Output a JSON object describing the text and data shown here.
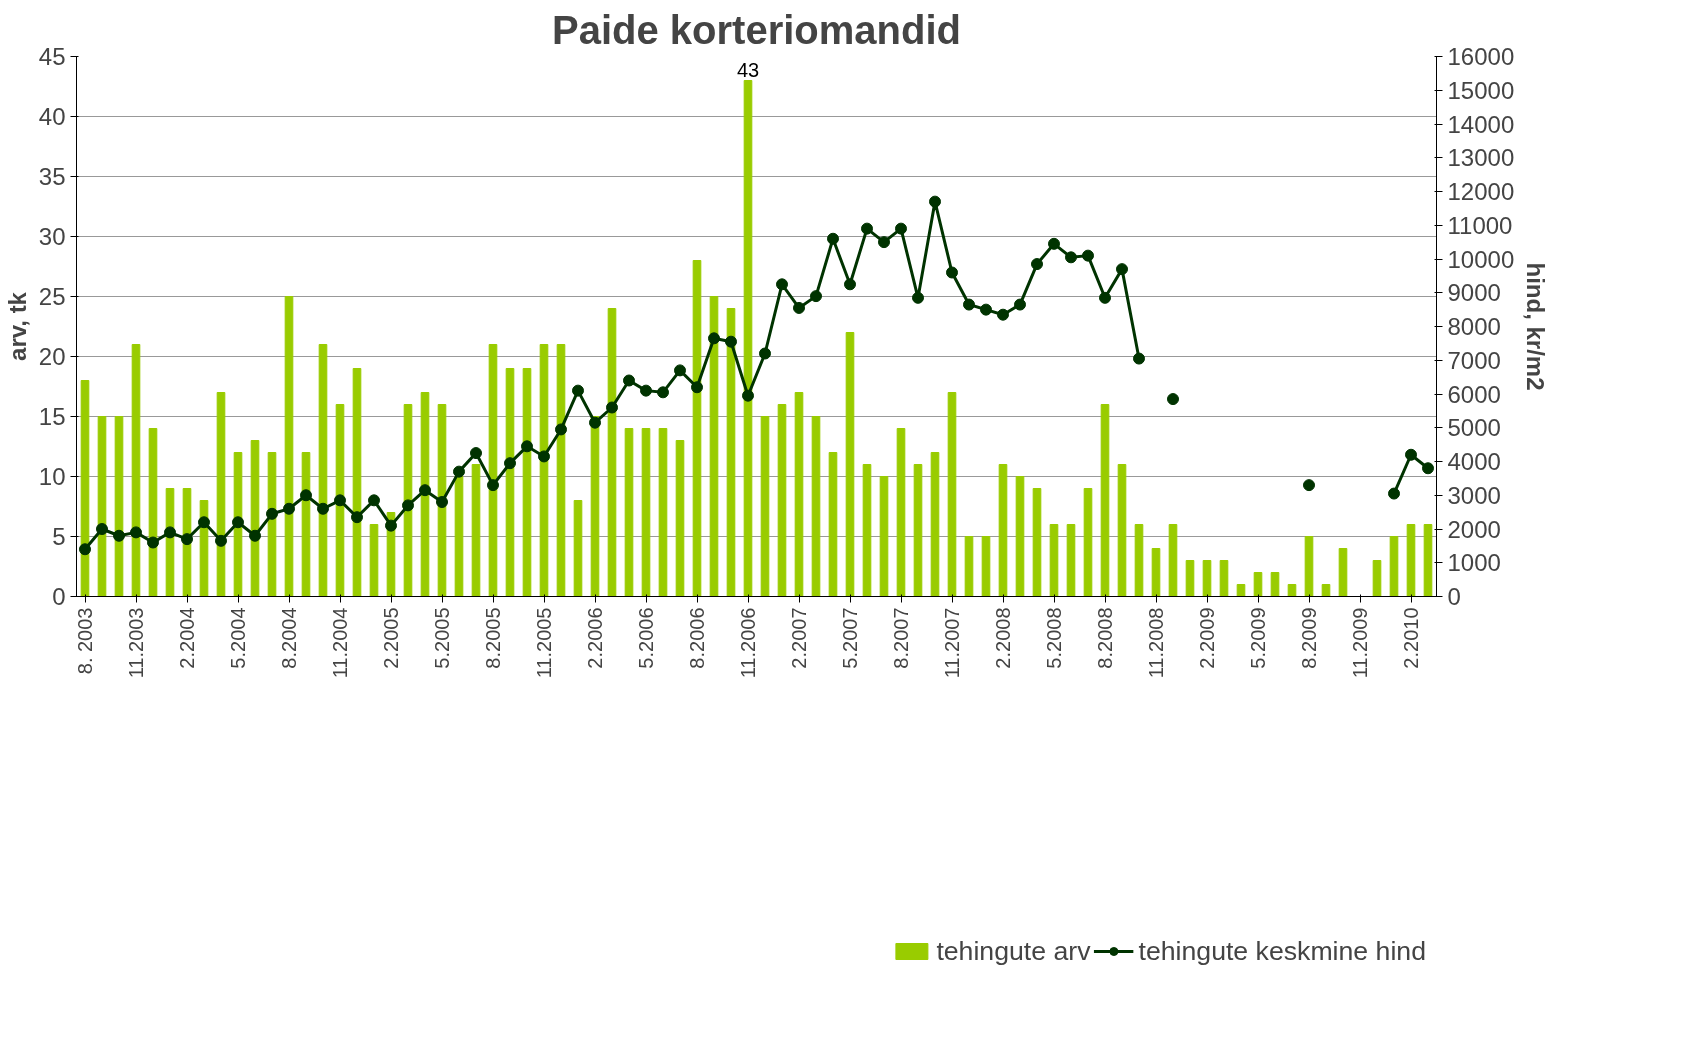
{
  "chart_data": {
    "type": "bar",
    "title": "Paide korteriomandid",
    "ylabel": "arv, tk",
    "y2label": "hind, kr/m2",
    "categories": [
      "8. 2003",
      null,
      null,
      "11.2003",
      null,
      null,
      "2.2004",
      null,
      null,
      "5.2004",
      null,
      null,
      "8.2004",
      null,
      null,
      "11.2004",
      null,
      null,
      "2.2005",
      null,
      null,
      "5.2005",
      null,
      null,
      "8.2005",
      null,
      null,
      "11.2005",
      null,
      null,
      "2.2006",
      null,
      null,
      "5.2006",
      null,
      null,
      "8.2006",
      null,
      null,
      "11.2006",
      null,
      null,
      "2.2007",
      null,
      null,
      "5.2007",
      null,
      null,
      "8.2007",
      null,
      null,
      "11.2007",
      null,
      null,
      "2.2008",
      null,
      null,
      "5.2008",
      null,
      null,
      "8.2008",
      null,
      null,
      "11.2008",
      null,
      null,
      "2.2009",
      null,
      null,
      "5.2009",
      null,
      null,
      "8.2009",
      null,
      null,
      "11.2009",
      null,
      null,
      "2.2010",
      null
    ],
    "series": [
      {
        "name": "tehingute arv",
        "color": "#99cc00",
        "values": [
          18,
          15,
          15,
          21,
          14,
          9,
          9,
          8,
          17,
          12,
          13,
          12,
          25,
          12,
          21,
          16,
          19,
          6,
          7,
          16,
          17,
          16,
          10,
          11,
          21,
          19,
          19,
          21,
          21,
          8,
          15,
          24,
          14,
          14,
          14,
          13,
          28,
          25,
          24,
          43,
          15,
          16,
          17,
          15,
          12,
          22,
          11,
          10,
          14,
          11,
          12,
          17,
          5,
          5,
          11,
          10,
          9,
          6,
          6,
          9,
          16,
          11,
          6,
          4,
          6,
          3,
          3,
          3,
          1,
          2,
          2,
          1,
          5,
          1,
          4,
          0,
          3,
          5,
          6,
          6
        ],
        "value_labels": [
          null,
          null,
          null,
          null,
          null,
          null,
          null,
          null,
          null,
          null,
          null,
          null,
          null,
          null,
          null,
          null,
          null,
          null,
          null,
          null,
          null,
          null,
          null,
          null,
          null,
          null,
          null,
          null,
          null,
          null,
          null,
          null,
          null,
          null,
          null,
          null,
          null,
          null,
          null,
          "43",
          null,
          null,
          null,
          null,
          null,
          null,
          null,
          null,
          null,
          null,
          null,
          null,
          null,
          null,
          null,
          null,
          null,
          null,
          null,
          null,
          null,
          null,
          null,
          null,
          null,
          null,
          null,
          null,
          null,
          null,
          null,
          null,
          null,
          null,
          null,
          null,
          null,
          null,
          null,
          null
        ]
      },
      {
        "name": "tehingute keskmine hind",
        "type": "line",
        "axis": "y2",
        "color": "#003300",
        "marker": "circle",
        "line_style": "solid",
        "values": [
          1400,
          2000,
          1800,
          1900,
          1600,
          1900,
          1700,
          2200,
          1650,
          2200,
          1800,
          2450,
          2600,
          3000,
          2600,
          2850,
          2350,
          2850,
          2100,
          2700,
          3150,
          2800,
          3700,
          4250,
          3300,
          3950,
          4450,
          4150,
          4950,
          6100,
          5150,
          5600,
          6400,
          6100,
          6050,
          6700,
          6200,
          7650,
          7550,
          5950,
          7200,
          9250,
          8550,
          8900,
          10600,
          9250,
          10900,
          10500,
          10900,
          8850,
          11700,
          9600,
          8650,
          8500,
          8350,
          8650,
          9850,
          10450,
          10050,
          10100,
          8850,
          9700,
          7050,
          null,
          5850,
          null,
          null,
          null,
          null,
          null,
          null,
          null,
          3300,
          null,
          null,
          null,
          null,
          3050,
          4200,
          3800
        ]
      }
    ],
    "ylim": [
      0,
      45
    ],
    "yticks": [
      0,
      5,
      10,
      15,
      20,
      25,
      30,
      35,
      40,
      45
    ],
    "y2lim": [
      0,
      16000
    ],
    "y2ticks": [
      0,
      1000,
      2000,
      3000,
      4000,
      5000,
      6000,
      7000,
      8000,
      9000,
      10000,
      11000,
      12000,
      13000,
      14000,
      15000,
      16000
    ],
    "grid": "y",
    "legend": "bottom"
  }
}
